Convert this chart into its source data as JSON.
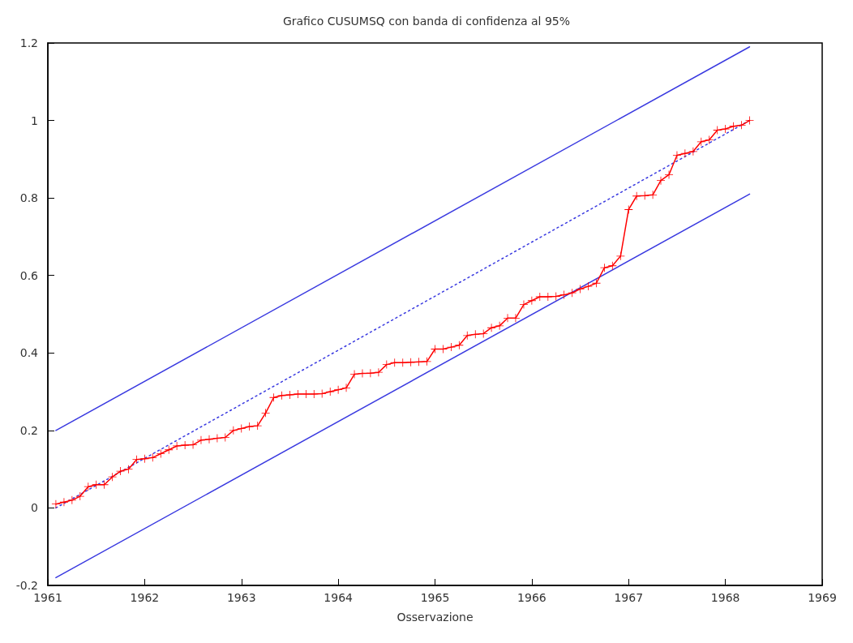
{
  "chart_data": {
    "type": "line",
    "title": "Grafico CUSUMSQ con banda di confidenza al 95%",
    "xlabel": "Osservazione",
    "xlim": [
      1961,
      1969
    ],
    "xticks": [
      1961,
      1962,
      1963,
      1964,
      1965,
      1966,
      1967,
      1968,
      1969
    ],
    "ylim": [
      -0.2,
      1.2
    ],
    "yticks": [
      -0.2,
      0,
      0.2,
      0.4,
      0.6,
      0.8,
      1,
      1.2
    ],
    "grid": false,
    "series": [
      {
        "color": "#ff0000",
        "marker": "cross",
        "line_style": "solid",
        "x": [
          1961.083,
          1961.167,
          1961.25,
          1961.333,
          1961.417,
          1961.5,
          1961.583,
          1961.667,
          1961.75,
          1961.833,
          1961.917,
          1962,
          1962.083,
          1962.167,
          1962.25,
          1962.333,
          1962.417,
          1962.5,
          1962.583,
          1962.667,
          1962.75,
          1962.833,
          1962.917,
          1963,
          1963.083,
          1963.167,
          1963.25,
          1963.333,
          1963.417,
          1963.5,
          1963.583,
          1963.667,
          1963.75,
          1963.833,
          1963.917,
          1964,
          1964.083,
          1964.167,
          1964.25,
          1964.333,
          1964.417,
          1964.5,
          1964.583,
          1964.667,
          1964.75,
          1964.833,
          1964.917,
          1965,
          1965.083,
          1965.167,
          1965.25,
          1965.333,
          1965.417,
          1965.5,
          1965.583,
          1965.667,
          1965.75,
          1965.833,
          1965.917,
          1966,
          1966.083,
          1966.167,
          1966.25,
          1966.333,
          1966.417,
          1966.5,
          1966.583,
          1966.667,
          1966.75,
          1966.833,
          1966.917,
          1967,
          1967.083,
          1967.167,
          1967.25,
          1967.333,
          1967.417,
          1967.5,
          1967.583,
          1967.667,
          1967.75,
          1967.833,
          1967.917,
          1968,
          1968.083,
          1968.167,
          1968.25
        ],
        "values": [
          0.01,
          0.015,
          0.02,
          0.03,
          0.055,
          0.06,
          0.06,
          0.08,
          0.095,
          0.1,
          0.125,
          0.127,
          0.13,
          0.14,
          0.15,
          0.16,
          0.162,
          0.163,
          0.175,
          0.177,
          0.18,
          0.182,
          0.2,
          0.205,
          0.21,
          0.212,
          0.245,
          0.285,
          0.29,
          0.292,
          0.294,
          0.294,
          0.294,
          0.295,
          0.3,
          0.305,
          0.31,
          0.345,
          0.347,
          0.348,
          0.35,
          0.37,
          0.375,
          0.375,
          0.376,
          0.377,
          0.378,
          0.41,
          0.41,
          0.415,
          0.42,
          0.445,
          0.448,
          0.45,
          0.465,
          0.47,
          0.49,
          0.49,
          0.525,
          0.535,
          0.545,
          0.545,
          0.546,
          0.55,
          0.555,
          0.565,
          0.572,
          0.58,
          0.62,
          0.625,
          0.65,
          0.77,
          0.805,
          0.806,
          0.808,
          0.845,
          0.86,
          0.91,
          0.915,
          0.92,
          0.945,
          0.95,
          0.975,
          0.978,
          0.985,
          0.988,
          1.0
        ]
      },
      {
        "color": "#3a3ae0",
        "marker": "none",
        "line_style": "solid",
        "x": [
          1961.083,
          1968.25
        ],
        "values": [
          0.2,
          1.19
        ]
      },
      {
        "color": "#3a3ae0",
        "marker": "none",
        "line_style": "solid",
        "x": [
          1961.083,
          1968.25
        ],
        "values": [
          -0.18,
          0.81
        ]
      },
      {
        "color": "#3a3ae0",
        "marker": "none",
        "line_style": "dotted",
        "x": [
          1961.083,
          1968.25
        ],
        "values": [
          0,
          1
        ]
      }
    ]
  }
}
